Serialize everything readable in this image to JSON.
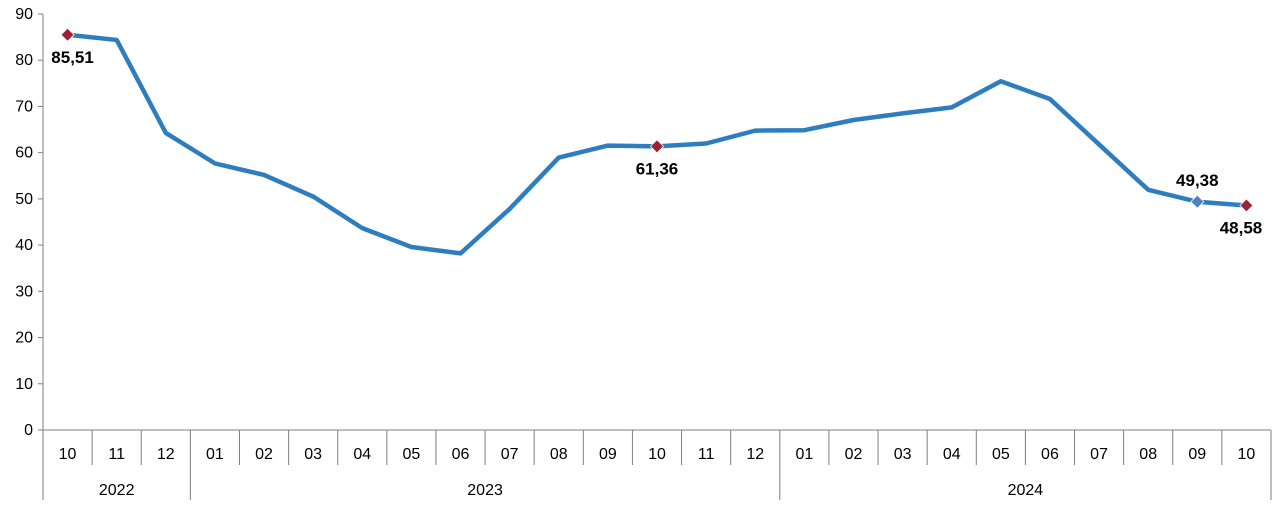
{
  "chart_data": {
    "type": "line",
    "title": "",
    "xlabel": "",
    "ylabel": "",
    "ylim": [
      0,
      90
    ],
    "yticks": [
      0,
      10,
      20,
      30,
      40,
      50,
      60,
      70,
      80,
      90
    ],
    "grid": false,
    "legend": "none",
    "categories": [
      "10",
      "11",
      "12",
      "01",
      "02",
      "03",
      "04",
      "05",
      "06",
      "07",
      "08",
      "09",
      "10",
      "11",
      "12",
      "01",
      "02",
      "03",
      "04",
      "05",
      "06",
      "07",
      "08",
      "09",
      "10"
    ],
    "year_groups": [
      {
        "label": "2022",
        "count": 3
      },
      {
        "label": "2023",
        "count": 12
      },
      {
        "label": "2024",
        "count": 10
      }
    ],
    "series": [
      {
        "color": "#2e7ebf",
        "values": [
          85.51,
          84.39,
          64.27,
          57.68,
          55.18,
          50.51,
          43.68,
          39.59,
          38.21,
          47.83,
          58.94,
          61.53,
          61.36,
          61.98,
          64.77,
          64.86,
          67.07,
          68.5,
          69.8,
          75.45,
          71.6,
          61.78,
          51.97,
          49.38,
          48.58
        ]
      }
    ],
    "markers": [
      {
        "index": 0,
        "color": "#9b2335"
      },
      {
        "index": 12,
        "color": "#9b2335"
      },
      {
        "index": 23,
        "color": "#4f81bd"
      },
      {
        "index": 24,
        "color": "#9b2335"
      }
    ],
    "data_labels": [
      {
        "index": 0,
        "text": "85,51",
        "position": "below"
      },
      {
        "index": 12,
        "text": "61,36",
        "position": "below"
      },
      {
        "index": 23,
        "text": "49,38",
        "position": "above"
      },
      {
        "index": 24,
        "text": "48,58",
        "position": "below"
      }
    ]
  }
}
